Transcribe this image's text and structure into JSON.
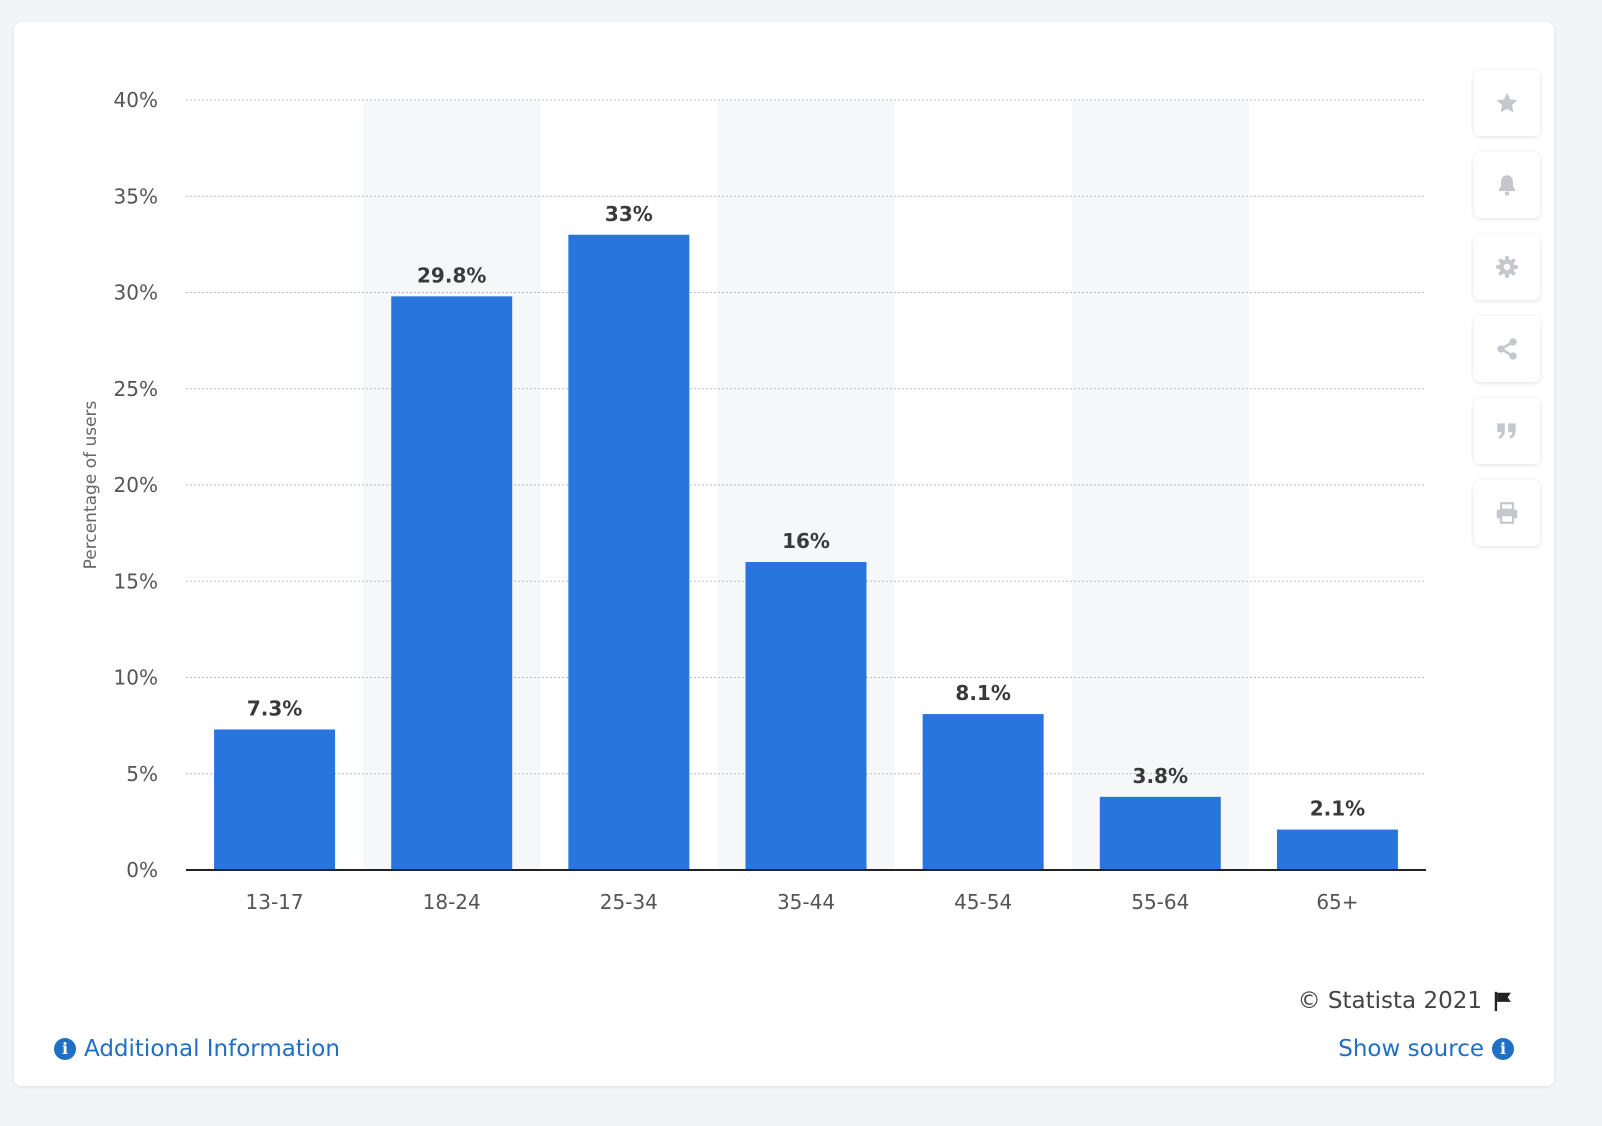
{
  "chart_data": {
    "type": "bar",
    "categories": [
      "13-17",
      "18-24",
      "25-34",
      "35-44",
      "45-54",
      "55-64",
      "65+"
    ],
    "values": [
      7.3,
      29.8,
      33,
      16,
      8.1,
      3.8,
      2.1
    ],
    "data_labels": [
      "7.3%",
      "29.8%",
      "33%",
      "16%",
      "8.1%",
      "3.8%",
      "2.1%"
    ],
    "ylabel": "Percentage of users",
    "xlabel": "",
    "ylim": [
      0,
      40
    ],
    "yticks": [
      0,
      5,
      10,
      15,
      20,
      25,
      30,
      35,
      40
    ],
    "ytick_labels": [
      "0%",
      "5%",
      "10%",
      "15%",
      "20%",
      "25%",
      "30%",
      "35%",
      "40%"
    ],
    "grid": true,
    "bar_color": "#2876dd",
    "band_color": "#f6f7f8"
  },
  "footer": {
    "copyright": "© Statista 2021",
    "additional_info": "Additional Information",
    "show_source": "Show source"
  },
  "toolbar": {
    "icons": [
      "star-icon",
      "bell-icon",
      "gear-icon",
      "share-icon",
      "quote-icon",
      "print-icon"
    ]
  },
  "colors": {
    "link": "#1f6fc5",
    "icon": "#c4c8cc"
  }
}
